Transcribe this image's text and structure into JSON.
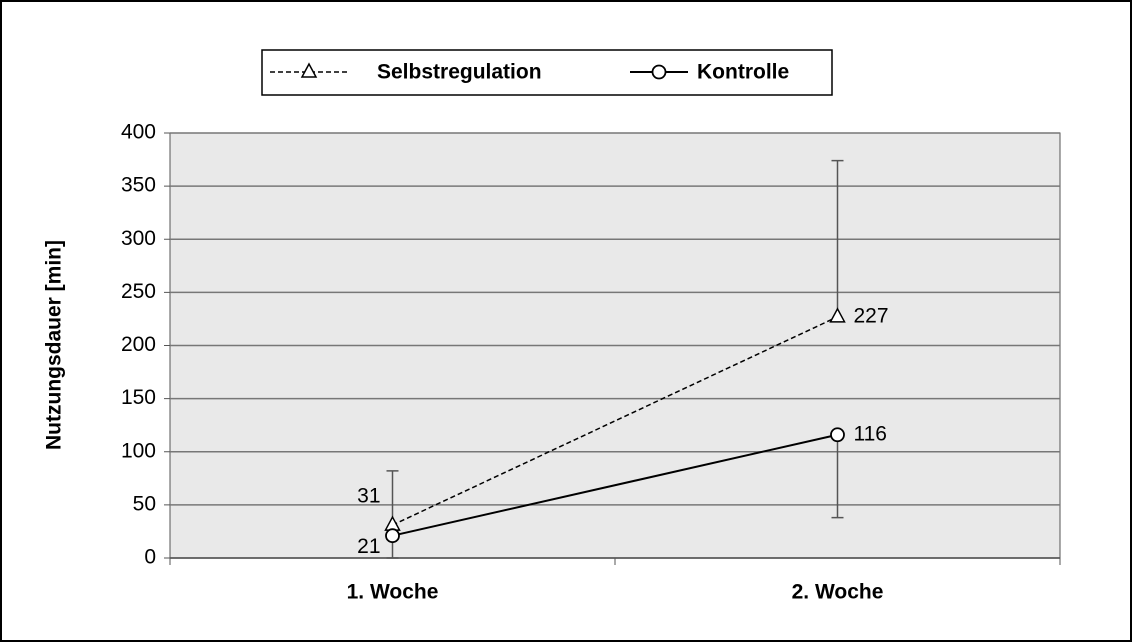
{
  "chart_data": {
    "type": "line",
    "categories": [
      "1. Woche",
      "2. Woche"
    ],
    "y_label": "Nutzungsdauer [min]",
    "series": [
      {
        "name": "Selbstregulation",
        "color": "#000000",
        "dash": true,
        "marker": "triangle",
        "values": [
          31,
          227
        ],
        "errors": [
          51,
          147
        ],
        "error_direction": "up"
      },
      {
        "name": "Kontrolle",
        "color": "#000000",
        "dash": false,
        "marker": "circle",
        "values": [
          21,
          116
        ],
        "errors": [
          21,
          78
        ],
        "error_direction": "down"
      }
    ],
    "ylim": [
      0,
      400
    ],
    "yticks": [
      0,
      50,
      100,
      150,
      200,
      250,
      300,
      350,
      400
    ],
    "grid": true,
    "legend": "top"
  }
}
